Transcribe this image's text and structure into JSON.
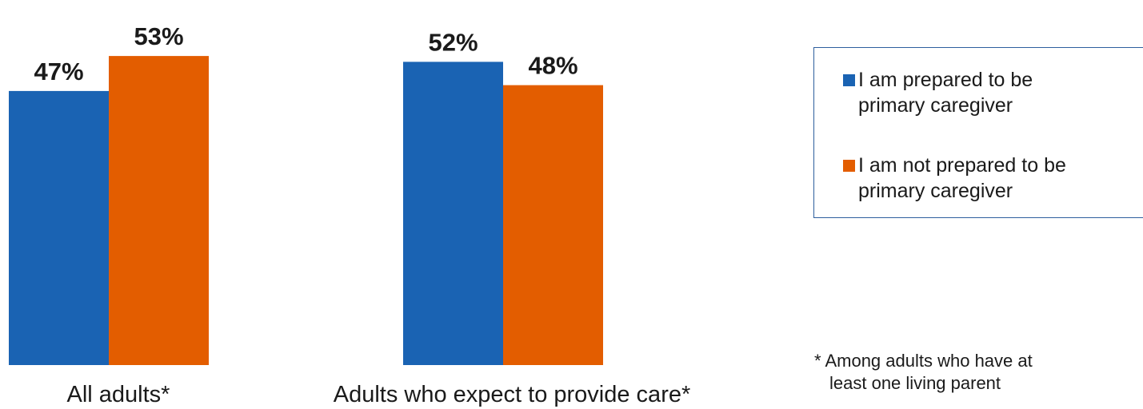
{
  "chart_data": {
    "type": "bar",
    "categories": [
      "All adults*",
      "Adults who expect to provide care*"
    ],
    "series": [
      {
        "name": "I am prepared to be primary caregiver",
        "values": [
          47,
          52
        ],
        "color": "#1a63b3"
      },
      {
        "name": "I am not prepared to be primary caregiver",
        "values": [
          53,
          48
        ],
        "color": "#e35d00"
      }
    ],
    "value_format": "percent",
    "ylim": [
      0,
      60
    ],
    "grid": false,
    "legend_position": "right"
  },
  "legend": {
    "items": [
      {
        "line1": "I am prepared to be",
        "line2": "primary caregiver",
        "color": "#1a63b3"
      },
      {
        "line1": "I am not prepared to be",
        "line2": "primary caregiver",
        "color": "#e35d00"
      }
    ]
  },
  "footnote": {
    "line1": "* Among adults who have at",
    "line2": "least one living parent"
  }
}
